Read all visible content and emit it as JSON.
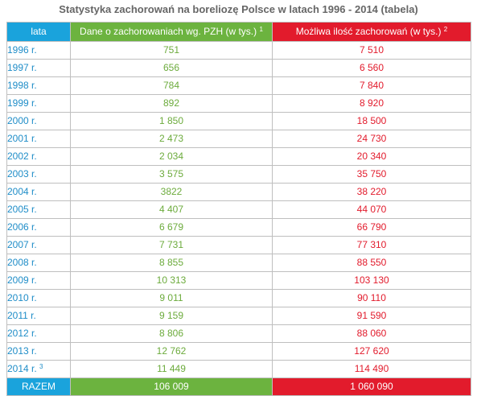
{
  "title": "Statystyka zachorowań na boreliozę Polsce w latach 1996 - 2014 (tabela)",
  "headers": {
    "year": "lata",
    "pzh": "Dane o zachorowaniach wg. PZH (w tys.)",
    "pzh_note": "1",
    "max": "Możliwa ilość zachorowań (w tys.)",
    "max_note": "2"
  },
  "colors": {
    "year": "#1aa3dc",
    "pzh": "#6cb33f",
    "max": "#e21b2c"
  },
  "chart_data": {
    "type": "table",
    "columns": [
      "lata",
      "Dane o zachorowaniach wg. PZH (w tys.)",
      "Możliwa ilość zachorowań (w tys.)"
    ],
    "rows": [
      {
        "year": "1996 r.",
        "note": "",
        "pzh": "751",
        "max": "7 510"
      },
      {
        "year": "1997 r.",
        "note": "",
        "pzh": "656",
        "max": "6 560"
      },
      {
        "year": "1998 r.",
        "note": "",
        "pzh": "784",
        "max": "7 840"
      },
      {
        "year": "1999 r.",
        "note": "",
        "pzh": "892",
        "max": "8 920"
      },
      {
        "year": "2000 r.",
        "note": "",
        "pzh": "1 850",
        "max": "18 500"
      },
      {
        "year": "2001 r.",
        "note": "",
        "pzh": "2 473",
        "max": "24 730"
      },
      {
        "year": "2002 r.",
        "note": "",
        "pzh": "2 034",
        "max": "20 340"
      },
      {
        "year": "2003 r.",
        "note": "",
        "pzh": "3 575",
        "max": "35 750"
      },
      {
        "year": "2004 r.",
        "note": "",
        "pzh": "3822",
        "max": "38 220"
      },
      {
        "year": "2005 r.",
        "note": "",
        "pzh": "4 407",
        "max": "44 070"
      },
      {
        "year": "2006 r.",
        "note": "",
        "pzh": "6 679",
        "max": "66 790"
      },
      {
        "year": "2007 r.",
        "note": "",
        "pzh": "7 731",
        "max": "77 310"
      },
      {
        "year": "2008 r.",
        "note": "",
        "pzh": "8 855",
        "max": "88 550"
      },
      {
        "year": "2009 r.",
        "note": "",
        "pzh": "10 313",
        "max": "103 130"
      },
      {
        "year": "2010 r.",
        "note": "",
        "pzh": "9 011",
        "max": "90 110"
      },
      {
        "year": "2011 r.",
        "note": "",
        "pzh": "9 159",
        "max": "91 590"
      },
      {
        "year": "2012 r.",
        "note": "",
        "pzh": "8 806",
        "max": "88 060"
      },
      {
        "year": "2013 r.",
        "note": "",
        "pzh": "12 762",
        "max": "127 620"
      },
      {
        "year": "2014 r.",
        "note": "3",
        "pzh": "11 449",
        "max": "114 490"
      }
    ],
    "total": {
      "label": "RAZEM",
      "pzh": "106 009",
      "max": "1 060 090"
    }
  }
}
